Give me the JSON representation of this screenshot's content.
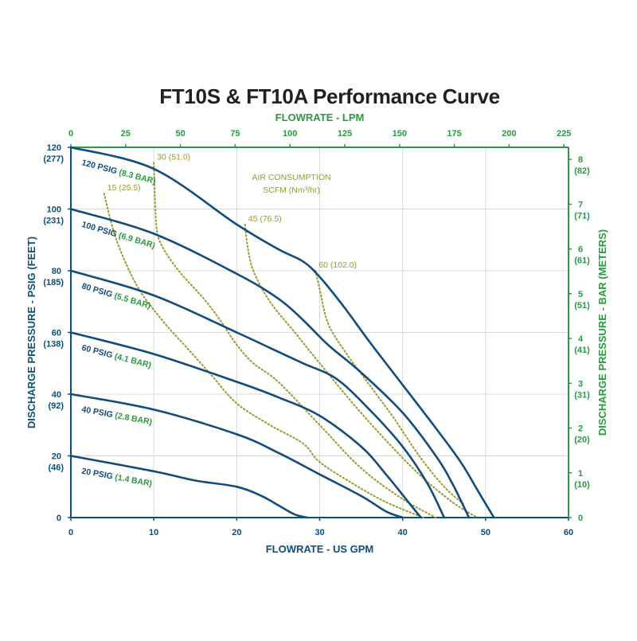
{
  "chart_data": {
    "type": "line",
    "title": "FT10S & FT10A Performance Curve",
    "xlabel": "FLOWRATE - US GPM",
    "x2label": "FLOWRATE - LPM",
    "ylabel": "DISCHARGE PRESSURE - PSIG (FEET)",
    "y2label": "DISCHARGE PRESSURE - BAR (METERS)",
    "xlim": [
      0,
      60
    ],
    "ylim": [
      0,
      120
    ],
    "x2lim": [
      0,
      227.1
    ],
    "y2lim": [
      0,
      8.27
    ],
    "grid": true,
    "x_ticks": [
      "0",
      "10",
      "20",
      "30",
      "40",
      "50",
      "60"
    ],
    "y_ticks": [
      {
        "value": 0,
        "label": "0",
        "sub": ""
      },
      {
        "value": 20,
        "label": "20",
        "sub": "(46)"
      },
      {
        "value": 40,
        "label": "40",
        "sub": "(92)"
      },
      {
        "value": 60,
        "label": "60",
        "sub": "(138)"
      },
      {
        "value": 80,
        "label": "80",
        "sub": "(185)"
      },
      {
        "value": 100,
        "label": "100",
        "sub": "(231)"
      },
      {
        "value": 120,
        "label": "120",
        "sub": "(277)"
      }
    ],
    "x2_ticks": [
      "0",
      "25",
      "50",
      "75",
      "100",
      "125",
      "150",
      "175",
      "200",
      "225"
    ],
    "y2_ticks": [
      {
        "value": 0,
        "label": "0",
        "sub": ""
      },
      {
        "value": 1,
        "label": "1",
        "sub": "(10)"
      },
      {
        "value": 2,
        "label": "2",
        "sub": "(20)"
      },
      {
        "value": 3,
        "label": "3",
        "sub": "(31)"
      },
      {
        "value": 4,
        "label": "4",
        "sub": "(41)"
      },
      {
        "value": 5,
        "label": "5",
        "sub": "(51)"
      },
      {
        "value": 6,
        "label": "6",
        "sub": "(61)"
      },
      {
        "value": 7,
        "label": "7",
        "sub": "(71)"
      },
      {
        "value": 8,
        "label": "8",
        "sub": "(82)"
      }
    ],
    "series": [
      {
        "name": "120 PSIG",
        "bar_label": "(8.3 BAR)",
        "x": [
          0,
          10,
          20,
          25,
          28,
          30,
          33,
          36,
          40,
          44,
          47,
          49,
          51
        ],
        "y": [
          120,
          113,
          95,
          87,
          83,
          78,
          68,
          57,
          43,
          29,
          18,
          9,
          0
        ]
      },
      {
        "name": "100 PSIG",
        "bar_label": "(6.9 BAR)",
        "x": [
          0,
          10,
          20,
          25,
          28,
          31,
          35,
          40,
          44,
          46,
          48
        ],
        "y": [
          100,
          92,
          79,
          71,
          64,
          56,
          47,
          34,
          20,
          11,
          0
        ]
      },
      {
        "name": "80 PSIG",
        "bar_label": "(5.5 BAR)",
        "x": [
          0,
          10,
          20,
          24,
          28,
          32,
          36,
          40,
          43,
          45
        ],
        "y": [
          80,
          72,
          60,
          55,
          50,
          45,
          35,
          23,
          11,
          0
        ]
      },
      {
        "name": "60 PSIG",
        "bar_label": "(4.1 BAR)",
        "x": [
          0,
          10,
          20,
          25,
          30,
          35,
          38,
          41,
          42.2
        ],
        "y": [
          60,
          53,
          44,
          39,
          33,
          23,
          14,
          4,
          0
        ]
      },
      {
        "name": "40 PSIG",
        "bar_label": "(2.8 BAR)",
        "x": [
          0,
          10,
          20,
          25,
          30,
          35,
          38,
          40
        ],
        "y": [
          40,
          35,
          27,
          21,
          14,
          7,
          2,
          0
        ]
      },
      {
        "name": "20 PSIG",
        "bar_label": "(1.4 BAR)",
        "x": [
          0,
          10,
          15,
          20,
          23,
          25,
          27,
          28.5
        ],
        "y": [
          20,
          15,
          12,
          10,
          7,
          4,
          1,
          0
        ]
      }
    ],
    "air_consumption": {
      "title": "AIR CONSUMPTION",
      "subtitle": "SCFM (Nm³/hr)",
      "lines": [
        {
          "label": "15 (25.5)",
          "x": [
            4,
            5.5,
            8,
            11,
            14,
            17,
            20,
            24,
            28,
            30,
            34,
            38,
            42.5
          ],
          "y": [
            105,
            90,
            75,
            64,
            55,
            46,
            37,
            30,
            24,
            18,
            11,
            5,
            0
          ]
        },
        {
          "label": "30 (51.0)",
          "x": [
            10,
            10.3,
            11,
            13,
            16,
            18,
            20,
            22,
            25,
            30,
            35,
            40,
            44
          ],
          "y": [
            115,
            95,
            88,
            80,
            71,
            64,
            56,
            50,
            44,
            30,
            16,
            6,
            0
          ]
        },
        {
          "label": "45 (76.5)",
          "x": [
            21,
            21.3,
            22,
            24,
            27,
            30,
            34,
            38,
            42,
            46,
            49
          ],
          "y": [
            95,
            88,
            80,
            70,
            60,
            50,
            37,
            25,
            14,
            5,
            0
          ]
        },
        {
          "label": "60 (102.0)",
          "x": [
            29.5,
            30,
            31,
            33,
            36,
            39,
            42,
            45,
            47.5
          ],
          "y": [
            80,
            74,
            63,
            54,
            43,
            32,
            20,
            10,
            4
          ]
        }
      ]
    },
    "colors": {
      "axis_left": "#0b4f7c",
      "axis_right": "#2a9940",
      "curve": "#124c7c",
      "air_line": "#9a9a2c",
      "title": "#231f20",
      "grid": "#d9d9d9",
      "bar_label": "#2a9940"
    }
  }
}
